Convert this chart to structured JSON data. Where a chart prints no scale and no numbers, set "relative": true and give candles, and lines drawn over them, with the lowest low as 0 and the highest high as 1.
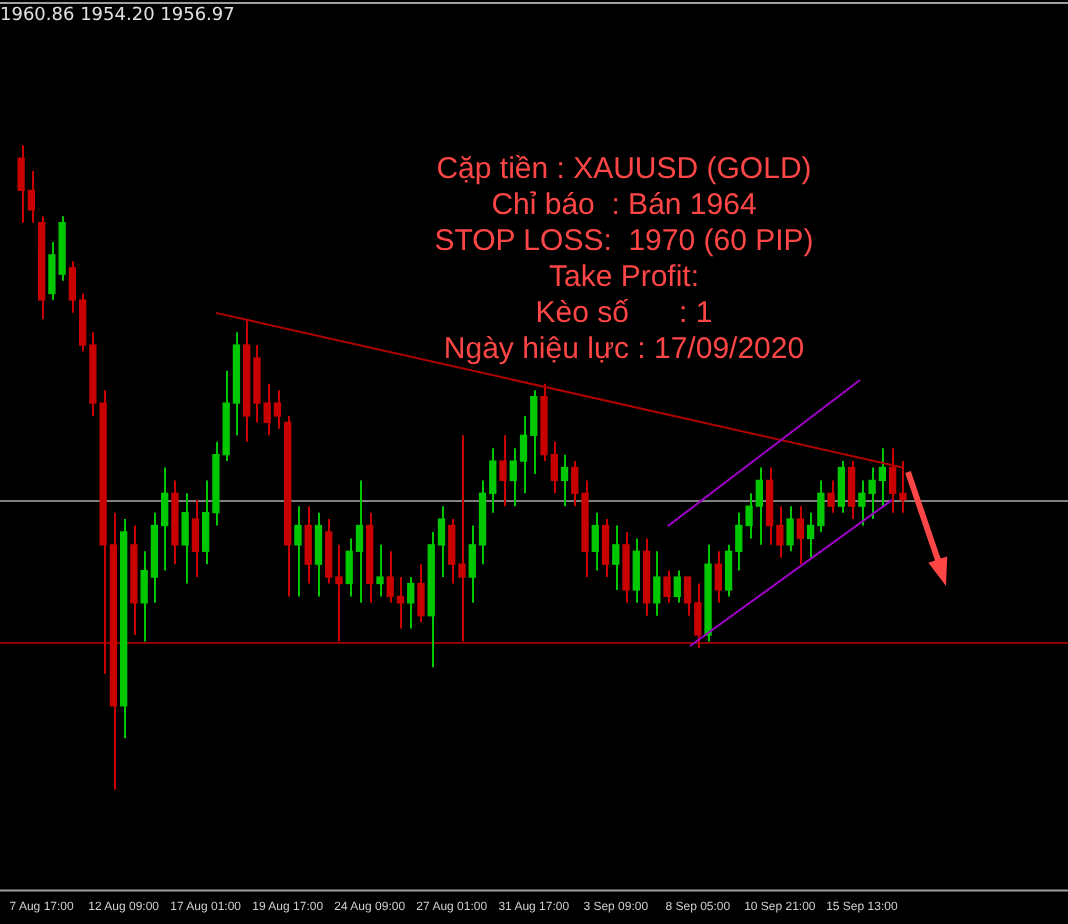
{
  "chart_data": {
    "type": "candlestick",
    "relative": true,
    "title": "1960.86 1954.20 1956.97",
    "annotations": [
      "Cặp tiền : XAUUSD (GOLD)",
      "Chỉ báo  : Bán 1964",
      "STOP LOSS:  1970 (60 PIP)",
      "Take Profit:",
      "Kèo số      : 1",
      "Ngày hiệu lực : 17/09/2020"
    ],
    "tick_labels": "x",
    "categories": [
      null,
      null,
      "7 Aug 17:00",
      null,
      null,
      null,
      null,
      null,
      null,
      null,
      "12 Aug 09:00",
      null,
      null,
      null,
      null,
      null,
      null,
      null,
      "17 Aug 01:00",
      null,
      null,
      null,
      null,
      null,
      null,
      null,
      "19 Aug 17:00",
      null,
      null,
      null,
      null,
      null,
      null,
      null,
      "24 Aug 09:00",
      null,
      null,
      null,
      null,
      null,
      null,
      null,
      "27 Aug 01:00",
      null,
      null,
      null,
      null,
      null,
      null,
      null,
      "31 Aug 17:00",
      null,
      null,
      null,
      null,
      null,
      null,
      null,
      "3 Sep 09:00",
      null,
      null,
      null,
      null,
      null,
      null,
      null,
      "8 Sep 05:00",
      null,
      null,
      null,
      null,
      null,
      null,
      null,
      "10 Sep 21:00",
      null,
      null,
      null,
      null,
      null,
      null,
      null,
      "15 Sep 13:00",
      null,
      null,
      null,
      null
    ],
    "ohlc": [
      [
        0.98,
        1.0,
        0.88,
        0.93
      ],
      [
        0.93,
        0.96,
        0.88,
        0.9
      ],
      [
        0.88,
        0.89,
        0.73,
        0.76
      ],
      [
        0.77,
        0.85,
        0.76,
        0.83
      ],
      [
        0.8,
        0.89,
        0.79,
        0.88
      ],
      [
        0.81,
        0.82,
        0.74,
        0.76
      ],
      [
        0.76,
        0.77,
        0.68,
        0.69
      ],
      [
        0.69,
        0.71,
        0.58,
        0.6
      ],
      [
        0.6,
        0.62,
        0.18,
        0.38
      ],
      [
        0.38,
        0.43,
        0,
        0.13
      ],
      [
        0.13,
        0.42,
        0.08,
        0.4
      ],
      [
        0.38,
        0.41,
        0.24,
        0.29
      ],
      [
        0.29,
        0.37,
        0.23,
        0.34
      ],
      [
        0.33,
        0.43,
        0.29,
        0.41
      ],
      [
        0.41,
        0.5,
        0.34,
        0.46
      ],
      [
        0.46,
        0.48,
        0.35,
        0.38
      ],
      [
        0.38,
        0.46,
        0.32,
        0.43
      ],
      [
        0.42,
        0.45,
        0.33,
        0.37
      ],
      [
        0.37,
        0.48,
        0.35,
        0.43
      ],
      [
        0.43,
        0.54,
        0.41,
        0.52
      ],
      [
        0.52,
        0.65,
        0.51,
        0.6
      ],
      [
        0.6,
        0.71,
        0.55,
        0.69
      ],
      [
        0.69,
        0.73,
        0.54,
        0.58
      ],
      [
        0.67,
        0.69,
        0.57,
        0.6
      ],
      [
        0.6,
        0.63,
        0.55,
        0.57
      ],
      [
        0.6,
        0.62,
        0.56,
        0.58
      ],
      [
        0.57,
        0.58,
        0.3,
        0.38
      ],
      [
        0.38,
        0.44,
        0.3,
        0.41
      ],
      [
        0.41,
        0.44,
        0.32,
        0.35
      ],
      [
        0.35,
        0.43,
        0.3,
        0.41
      ],
      [
        0.4,
        0.42,
        0.32,
        0.33
      ],
      [
        0.33,
        0.38,
        0.23,
        0.32
      ],
      [
        0.32,
        0.39,
        0.3,
        0.37
      ],
      [
        0.37,
        0.48,
        0.29,
        0.41
      ],
      [
        0.41,
        0.43,
        0.29,
        0.32
      ],
      [
        0.32,
        0.38,
        0.3,
        0.33
      ],
      [
        0.33,
        0.37,
        0.29,
        0.3
      ],
      [
        0.3,
        0.33,
        0.25,
        0.29
      ],
      [
        0.29,
        0.33,
        0.25,
        0.32
      ],
      [
        0.32,
        0.35,
        0.26,
        0.27
      ],
      [
        0.27,
        0.4,
        0.19,
        0.38
      ],
      [
        0.38,
        0.44,
        0.33,
        0.42
      ],
      [
        0.41,
        0.42,
        0.32,
        0.35
      ],
      [
        0.35,
        0.55,
        0.23,
        0.33
      ],
      [
        0.33,
        0.41,
        0.29,
        0.38
      ],
      [
        0.38,
        0.48,
        0.35,
        0.46
      ],
      [
        0.46,
        0.53,
        0.43,
        0.51
      ],
      [
        0.51,
        0.55,
        0.44,
        0.48
      ],
      [
        0.48,
        0.53,
        0.44,
        0.51
      ],
      [
        0.51,
        0.58,
        0.46,
        0.55
      ],
      [
        0.55,
        0.62,
        0.49,
        0.61
      ],
      [
        0.61,
        0.63,
        0.51,
        0.52
      ],
      [
        0.52,
        0.54,
        0.46,
        0.48
      ],
      [
        0.48,
        0.52,
        0.44,
        0.5
      ],
      [
        0.5,
        0.51,
        0.44,
        0.46
      ],
      [
        0.46,
        0.48,
        0.33,
        0.37
      ],
      [
        0.37,
        0.43,
        0.34,
        0.41
      ],
      [
        0.41,
        0.42,
        0.33,
        0.35
      ],
      [
        0.35,
        0.41,
        0.31,
        0.38
      ],
      [
        0.38,
        0.4,
        0.29,
        0.31
      ],
      [
        0.31,
        0.39,
        0.29,
        0.37
      ],
      [
        0.37,
        0.39,
        0.27,
        0.29
      ],
      [
        0.29,
        0.37,
        0.27,
        0.33
      ],
      [
        0.33,
        0.34,
        0.29,
        0.3
      ],
      [
        0.3,
        0.34,
        0.29,
        0.33
      ],
      [
        0.33,
        0.33,
        0.27,
        0.29
      ],
      [
        0.29,
        0.32,
        0.22,
        0.24
      ],
      [
        0.24,
        0.38,
        0.23,
        0.35
      ],
      [
        0.35,
        0.37,
        0.29,
        0.31
      ],
      [
        0.31,
        0.38,
        0.3,
        0.37
      ],
      [
        0.37,
        0.43,
        0.34,
        0.41
      ],
      [
        0.41,
        0.46,
        0.39,
        0.44
      ],
      [
        0.44,
        0.5,
        0.38,
        0.48
      ],
      [
        0.48,
        0.5,
        0.38,
        0.41
      ],
      [
        0.41,
        0.44,
        0.36,
        0.38
      ],
      [
        0.38,
        0.44,
        0.37,
        0.42
      ],
      [
        0.42,
        0.44,
        0.35,
        0.39
      ],
      [
        0.39,
        0.43,
        0.36,
        0.41
      ],
      [
        0.41,
        0.48,
        0.4,
        0.46
      ],
      [
        0.46,
        0.48,
        0.43,
        0.44
      ],
      [
        0.44,
        0.51,
        0.43,
        0.5
      ],
      [
        0.5,
        0.51,
        0.42,
        0.44
      ],
      [
        0.44,
        0.48,
        0.41,
        0.46
      ],
      [
        0.46,
        0.5,
        0.42,
        0.48
      ],
      [
        0.48,
        0.53,
        0.44,
        0.5
      ],
      [
        0.5,
        0.53,
        0.43,
        0.46
      ],
      [
        0.46,
        0.51,
        0.43,
        0.45
      ]
    ],
    "series": [
      {
        "type": "line",
        "color": "#b00000",
        "values": [
          null,
          null,
          null,
          null,
          null,
          null,
          null,
          null,
          null,
          null,
          null,
          null,
          null,
          null,
          null,
          null,
          null,
          null,
          null,
          0.74,
          null,
          null,
          null,
          null,
          null,
          null,
          null,
          null,
          null,
          null,
          null,
          null,
          null,
          null,
          null,
          null,
          null,
          null,
          null,
          null,
          null,
          null,
          null,
          null,
          null,
          null,
          null,
          null,
          null,
          null,
          null,
          null,
          null,
          null,
          null,
          null,
          null,
          null,
          null,
          null,
          null,
          null,
          null,
          null,
          null,
          null,
          null,
          null,
          null,
          null,
          null,
          null,
          null,
          null,
          null,
          null,
          null,
          null,
          null,
          null,
          null,
          null,
          null,
          null,
          null,
          null,
          0.5
        ]
      }
    ],
    "ref_lines": [
      {
        "axis": "y",
        "value": 0.45,
        "color": "#808080"
      },
      {
        "axis": "y",
        "value": 0.23,
        "color": "#8b0000"
      }
    ]
  }
}
